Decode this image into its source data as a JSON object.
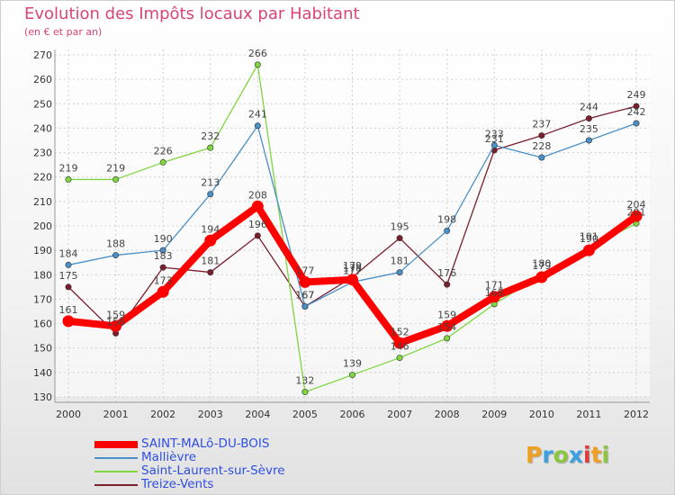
{
  "chart_data": {
    "type": "line",
    "title": "Evolution des Impôts locaux par Habitant",
    "subtitle": "(en € et par an)",
    "xlabel": "",
    "ylabel": "",
    "ylim": [
      130,
      270
    ],
    "yticks": [
      130,
      140,
      150,
      160,
      170,
      180,
      190,
      200,
      210,
      220,
      230,
      240,
      250,
      260,
      270
    ],
    "x": [
      "2000",
      "2001",
      "2002",
      "2003",
      "2004",
      "2005",
      "2006",
      "2007",
      "2008",
      "2009",
      "2010",
      "2011",
      "2012"
    ],
    "grid": true,
    "legend_position": "bottom-left",
    "series": [
      {
        "name": "Treize-Vents",
        "color": "#7a1f2b",
        "values": [
          175,
          156,
          183,
          181,
          196,
          167,
          179,
          195,
          176,
          231,
          237,
          244,
          249
        ]
      },
      {
        "name": "Saint-Laurent-sur-Sèvre",
        "color": "#7fd63f",
        "values": [
          219,
          219,
          226,
          232,
          266,
          132,
          139,
          146,
          154,
          168,
          180,
          191,
          201
        ]
      },
      {
        "name": "Mallièvre",
        "color": "#4a90c8",
        "values": [
          184,
          188,
          190,
          213,
          241,
          167,
          177,
          181,
          198,
          233,
          228,
          235,
          242
        ]
      },
      {
        "name": "SAINT-MALô-DU-BOIS",
        "color": "#ff0000",
        "values": [
          161,
          159,
          173,
          194,
          208,
          177,
          178,
          152,
          159,
          171,
          179,
          190,
          204
        ]
      }
    ],
    "legend": [
      "SAINT-MALô-DU-BOIS",
      "Mallièvre",
      "Saint-Laurent-sur-Sèvre",
      "Treize-Vents"
    ]
  },
  "brand": {
    "letters": [
      "P",
      "r",
      "o",
      "x",
      "i",
      "t",
      "i"
    ],
    "colors": [
      "#f0a020",
      "#3aa0e0",
      "#8cc63f",
      "#3aa0e0",
      "#e03a3a",
      "#f0a020",
      "#8cc63f"
    ]
  }
}
